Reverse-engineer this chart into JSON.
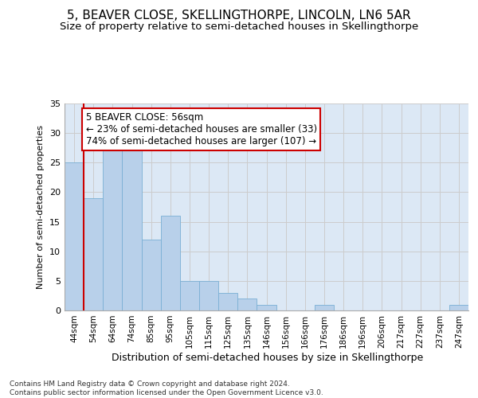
{
  "title": "5, BEAVER CLOSE, SKELLINGTHORPE, LINCOLN, LN6 5AR",
  "subtitle": "Size of property relative to semi-detached houses in Skellingthorpe",
  "xlabel_bottom": "Distribution of semi-detached houses by size in Skellingthorpe",
  "ylabel": "Number of semi-detached properties",
  "categories": [
    "44sqm",
    "54sqm",
    "64sqm",
    "74sqm",
    "85sqm",
    "95sqm",
    "105sqm",
    "115sqm",
    "125sqm",
    "135sqm",
    "146sqm",
    "156sqm",
    "166sqm",
    "176sqm",
    "186sqm",
    "196sqm",
    "206sqm",
    "217sqm",
    "227sqm",
    "237sqm",
    "247sqm"
  ],
  "values": [
    25,
    19,
    27,
    27,
    12,
    16,
    5,
    5,
    3,
    2,
    1,
    0,
    0,
    1,
    0,
    0,
    0,
    0,
    0,
    0,
    1
  ],
  "bar_color": "#b8d0ea",
  "bar_edge_color": "#7aafd4",
  "highlight_line_color": "#cc0000",
  "annotation_box_text": "5 BEAVER CLOSE: 56sqm\n← 23% of semi-detached houses are smaller (33)\n74% of semi-detached houses are larger (107) →",
  "annotation_box_color": "#ffffff",
  "annotation_box_edge_color": "#cc0000",
  "ylim": [
    0,
    35
  ],
  "yticks": [
    0,
    5,
    10,
    15,
    20,
    25,
    30,
    35
  ],
  "footer_text": "Contains HM Land Registry data © Crown copyright and database right 2024.\nContains public sector information licensed under the Open Government Licence v3.0.",
  "grid_color": "#cccccc",
  "background_color": "#dce8f5",
  "title_fontsize": 11,
  "subtitle_fontsize": 9.5,
  "annotation_fontsize": 8.5,
  "footer_fontsize": 6.5,
  "ylabel_fontsize": 8,
  "xlabel_fontsize": 9,
  "ytick_fontsize": 8,
  "xtick_fontsize": 7.5
}
